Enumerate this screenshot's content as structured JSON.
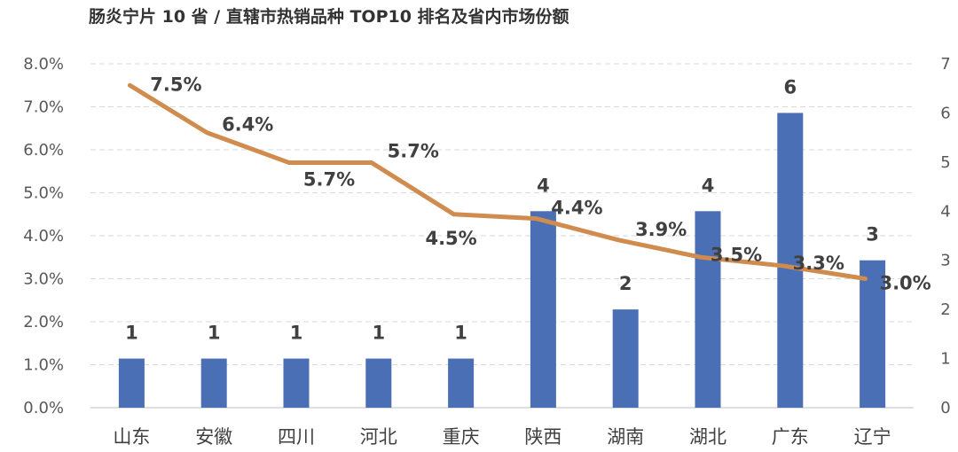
{
  "chart_data": {
    "type": "bar",
    "title": "肠炎宁片 10 省 / 直辖市热销品种 TOP10 排名及省内市场份额",
    "categories": [
      "山东",
      "安徽",
      "四川",
      "河北",
      "重庆",
      "陕西",
      "湖南",
      "湖北",
      "广东",
      "辽宁"
    ],
    "series": [
      {
        "type": "bar",
        "axis": "right",
        "values": [
          1,
          1,
          1,
          1,
          1,
          4,
          2,
          4,
          6,
          3
        ],
        "labels": [
          "1",
          "1",
          "1",
          "1",
          "1",
          "4",
          "2",
          "4",
          "6",
          "3"
        ]
      },
      {
        "type": "line",
        "axis": "left",
        "values": [
          7.5,
          6.4,
          5.7,
          5.7,
          4.5,
          4.4,
          3.9,
          3.5,
          3.3,
          3.0
        ],
        "labels": [
          "7.5%",
          "6.4%",
          "5.7%",
          "5.7%",
          "4.5%",
          "4.4%",
          "3.9%",
          "3.5%",
          "3.3%",
          "3.0%"
        ]
      }
    ],
    "y_left": {
      "min": 0,
      "max": 8,
      "ticks": [
        "0.0%",
        "1.0%",
        "2.0%",
        "3.0%",
        "4.0%",
        "5.0%",
        "6.0%",
        "7.0%",
        "8.0%"
      ]
    },
    "y_right": {
      "min": 0,
      "max": 7,
      "ticks": [
        "0",
        "1",
        "2",
        "3",
        "4",
        "5",
        "6",
        "7"
      ]
    },
    "grid": true,
    "legend": "none",
    "colors": {
      "bar": "#4a6fb5",
      "line": "#d08b4e",
      "grid": "#d9d9d9"
    }
  }
}
